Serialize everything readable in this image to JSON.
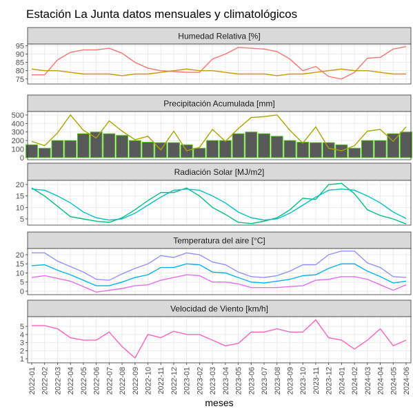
{
  "title": "Estación La Junta datos mensuales y climatológicos",
  "x_label": "meses",
  "categories": [
    "2022-01",
    "2022-02",
    "2022-03",
    "2022-04",
    "2022-05",
    "2022-06",
    "2022-07",
    "2022-08",
    "2022-09",
    "2022-10",
    "2022-11",
    "2022-12",
    "2023-01",
    "2023-02",
    "2023-03",
    "2023-04",
    "2023-05",
    "2023-06",
    "2023-07",
    "2023-08",
    "2023-09",
    "2023-10",
    "2023-11",
    "2023-12",
    "2024-01",
    "2024-02",
    "2024-03",
    "2024-04",
    "2024-05",
    "2024-06"
  ],
  "chart_data": [
    {
      "type": "line",
      "title": "Humedad Relativa [%]",
      "ylim": [
        72,
        96
      ],
      "yticks": [
        75,
        80,
        85,
        90,
        95
      ],
      "grid": true,
      "series": [
        {
          "color": "#F8766D",
          "values": [
            77.5,
            77.5,
            86.5,
            91,
            92.5,
            92.5,
            93.5,
            90.5,
            85,
            81.5,
            80,
            79.5,
            79,
            79,
            87,
            90,
            94,
            93.5,
            93,
            91.5,
            87,
            80,
            82.5,
            76.5,
            75,
            79,
            87.5,
            88,
            93,
            94.5
          ]
        },
        {
          "color": "#CD9600",
          "values": [
            81,
            80,
            80,
            79,
            78,
            78,
            78,
            77,
            78,
            78,
            79,
            80,
            81,
            80,
            80,
            79,
            78,
            78,
            78,
            77,
            78,
            78,
            79,
            80,
            81,
            80,
            80,
            79,
            78,
            78
          ]
        }
      ]
    },
    {
      "type": "bar",
      "title": "Precipitación Acumulada [mm]",
      "ylim": [
        -25,
        540
      ],
      "yticks": [
        0,
        100,
        200,
        300,
        400,
        500
      ],
      "grid": true,
      "series": [
        {
          "type": "bar",
          "color": "#4CC417",
          "fill": "#595959",
          "values": [
            150,
            110,
            200,
            200,
            280,
            300,
            280,
            260,
            200,
            180,
            175,
            175,
            150,
            110,
            200,
            200,
            280,
            300,
            280,
            250,
            200,
            180,
            175,
            175,
            150,
            110,
            200,
            200,
            280,
            300
          ]
        },
        {
          "type": "line",
          "color": "#A3A500",
          "values": [
            190,
            140,
            290,
            500,
            320,
            230,
            430,
            310,
            210,
            250,
            90,
            310,
            80,
            120,
            330,
            190,
            340,
            470,
            480,
            500,
            320,
            170,
            360,
            110,
            80,
            140,
            310,
            330,
            190,
            360
          ]
        }
      ]
    },
    {
      "type": "line",
      "title": "Radiación Solar [MJ/m2]",
      "ylim": [
        2.3,
        21.8
      ],
      "yticks": [
        5,
        10,
        15,
        20
      ],
      "grid": true,
      "series": [
        {
          "color": "#00BF7D",
          "values": [
            18.5,
            15,
            10.5,
            6,
            5,
            4,
            3.5,
            5.5,
            9,
            13,
            16.5,
            16.5,
            18.5,
            15,
            10,
            7,
            3.5,
            3,
            4,
            5.5,
            9,
            14,
            13.5,
            20,
            20.5,
            16,
            9,
            6.5,
            5,
            2.8
          ]
        },
        {
          "color": "#00BFC4",
          "values": [
            18,
            17.5,
            15,
            12,
            8,
            5.5,
            4.5,
            5,
            7.5,
            11,
            14.5,
            17.5,
            18,
            17.5,
            15,
            12,
            8,
            5.5,
            4.5,
            5,
            7.5,
            11,
            14.5,
            17.5,
            18,
            17.5,
            15,
            12,
            8,
            5.2
          ]
        }
      ]
    },
    {
      "type": "line",
      "title": "Temperatura del aire [°C]",
      "ylim": [
        -1.9,
        23.4
      ],
      "yticks": [
        0,
        5,
        10,
        15,
        20
      ],
      "grid": true,
      "series": [
        {
          "color": "#9590FF",
          "values": [
            21,
            21,
            16.5,
            13.5,
            10.5,
            6.5,
            6,
            9.5,
            12.5,
            15,
            19.5,
            18.5,
            21,
            20,
            16,
            14.5,
            10.5,
            8,
            7.5,
            8.5,
            11,
            14.5,
            14.5,
            20,
            22,
            22,
            15.5,
            13,
            8,
            7.5
          ]
        },
        {
          "color": "#00B0F6",
          "values": [
            14,
            14.5,
            11.5,
            9,
            6,
            3,
            3,
            5,
            7.5,
            9,
            13,
            13,
            15,
            14.5,
            10.5,
            10,
            7.5,
            5,
            4.5,
            5.5,
            6.5,
            8.5,
            9,
            12.5,
            15,
            15,
            11,
            8,
            4.5,
            5.5
          ]
        },
        {
          "color": "#E76BF3",
          "values": [
            7.5,
            8.5,
            7,
            5.5,
            2.5,
            -0.5,
            0.5,
            1.5,
            3,
            3.5,
            6,
            7.5,
            9,
            8.5,
            5,
            5,
            4,
            2,
            2,
            2,
            2.5,
            3,
            6,
            6.5,
            8,
            8,
            6.5,
            3.5,
            0.5,
            3.5
          ]
        }
      ]
    },
    {
      "type": "line",
      "title": "Velocidad de Viento [km/h]",
      "ylim": [
        0.5,
        6.2
      ],
      "yticks": [
        1,
        2,
        3,
        4,
        5
      ],
      "grid": true,
      "series": [
        {
          "color": "#FF62BC",
          "values": [
            5.1,
            5.1,
            4.7,
            3.6,
            3.3,
            3.3,
            4.3,
            2.5,
            1.1,
            4,
            3.6,
            4.4,
            4,
            4,
            3.3,
            2.6,
            2.9,
            4.3,
            4.3,
            4.7,
            4.3,
            4.3,
            5.8,
            3.6,
            3.3,
            2.2,
            3.3,
            4.7,
            2.6,
            3.3
          ]
        }
      ]
    }
  ]
}
